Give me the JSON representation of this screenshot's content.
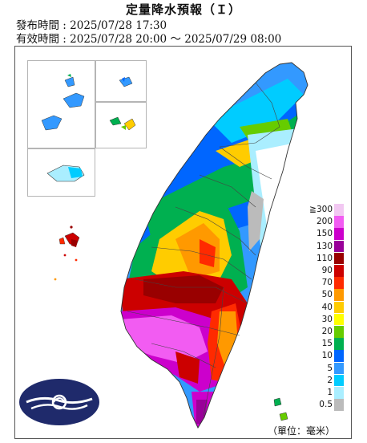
{
  "header": {
    "title": "定量降水預報（Ｉ）",
    "issue_label": "發布時間 :",
    "issue_time": "2025/07/28 17:30",
    "valid_label": "有效時間 :",
    "valid_start": "2025/07/28 20:00",
    "valid_sep": "～",
    "valid_end": "2025/07/29 08:00"
  },
  "legend": {
    "top_prefix": "≧",
    "items": [
      {
        "label": "300",
        "color": "#f2c8f2"
      },
      {
        "label": "200",
        "color": "#f25cf2"
      },
      {
        "label": "150",
        "color": "#cc00cc"
      },
      {
        "label": "130",
        "color": "#990099"
      },
      {
        "label": "110",
        "color": "#990000"
      },
      {
        "label": "90",
        "color": "#cc0000"
      },
      {
        "label": "70",
        "color": "#ff2a00"
      },
      {
        "label": "50",
        "color": "#ff9900"
      },
      {
        "label": "40",
        "color": "#ffcc00"
      },
      {
        "label": "30",
        "color": "#ffff00"
      },
      {
        "label": "20",
        "color": "#66cc00"
      },
      {
        "label": "15",
        "color": "#00b050"
      },
      {
        "label": "10",
        "color": "#0066ff"
      },
      {
        "label": "5",
        "color": "#3399ff"
      },
      {
        "label": "2",
        "color": "#00ccff"
      },
      {
        "label": "1",
        "color": "#aaeeff"
      },
      {
        "label": "0.5",
        "color": "#bbbbbb"
      }
    ]
  },
  "unit_note": "（單位：毫米）",
  "logo_name": "central-weather-administration-logo"
}
